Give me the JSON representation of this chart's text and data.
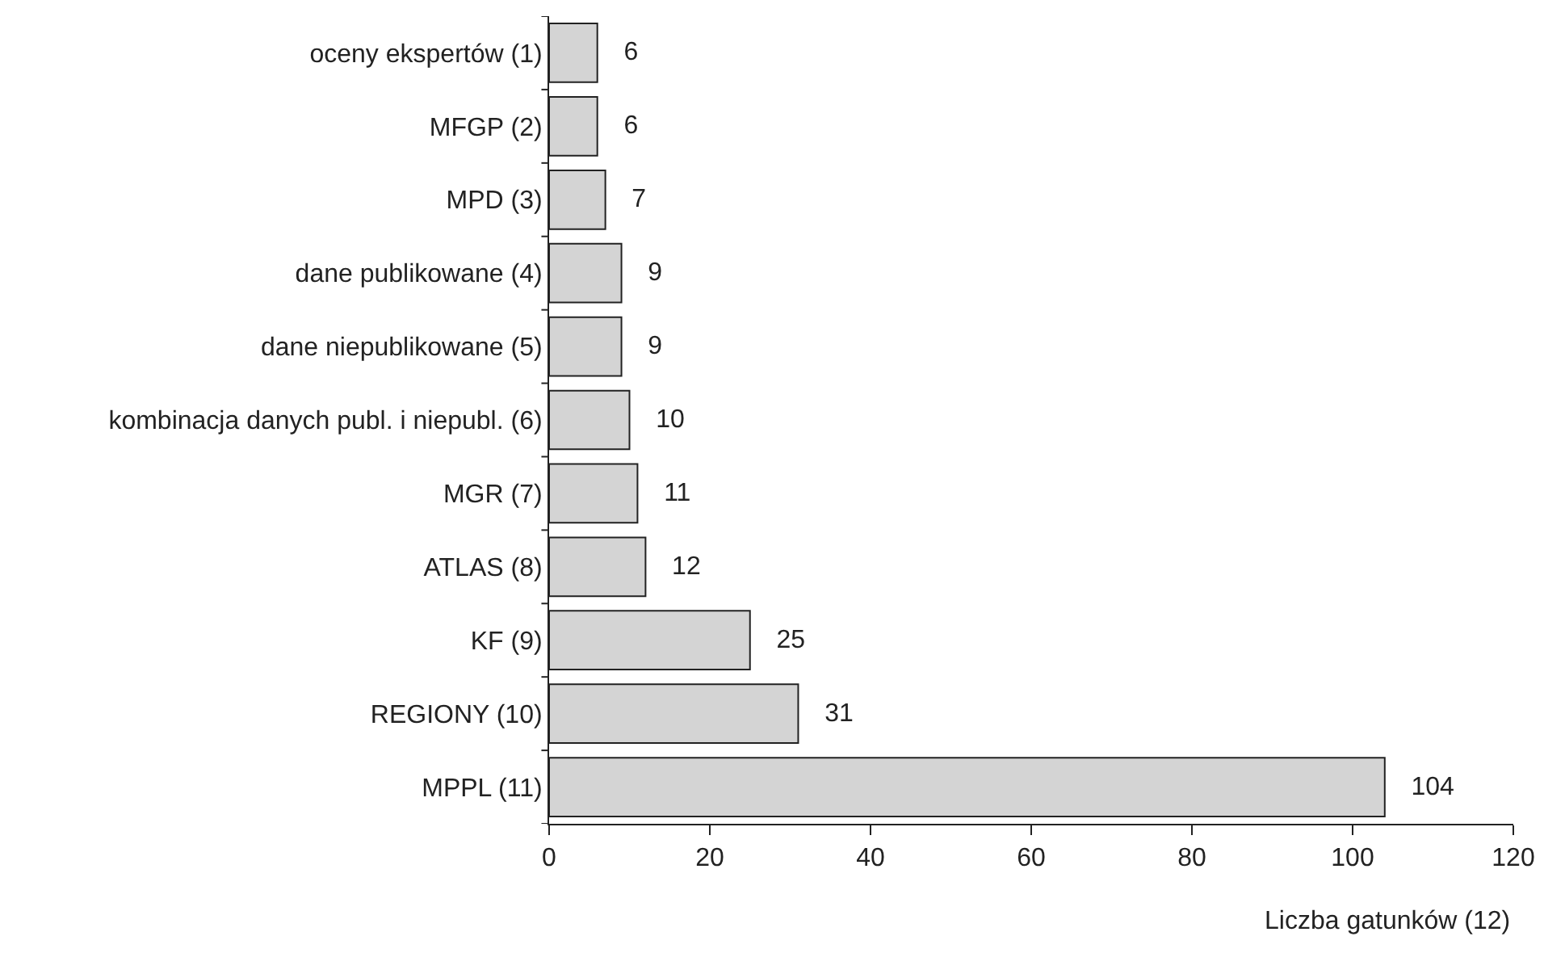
{
  "chart_data": {
    "type": "bar",
    "orientation": "horizontal",
    "categories": [
      "oceny ekspertów (1)",
      "MFGP (2)",
      "MPD (3)",
      "dane publikowane (4)",
      "dane niepublikowane (5)",
      "kombinacja danych publ. i niepubl. (6)",
      "MGR (7)",
      "ATLAS (8)",
      "KF (9)",
      "REGIONY (10)",
      "MPPL (11)"
    ],
    "values": [
      6,
      6,
      7,
      9,
      9,
      10,
      11,
      12,
      25,
      31,
      104
    ],
    "color": "#d4d4d4",
    "xlabel": "Liczba gatunków (12)",
    "xlim": [
      0,
      120
    ],
    "xticks": [
      0,
      20,
      40,
      60,
      80,
      100,
      120
    ],
    "data_labels": true,
    "grid": false,
    "legend": false
  }
}
